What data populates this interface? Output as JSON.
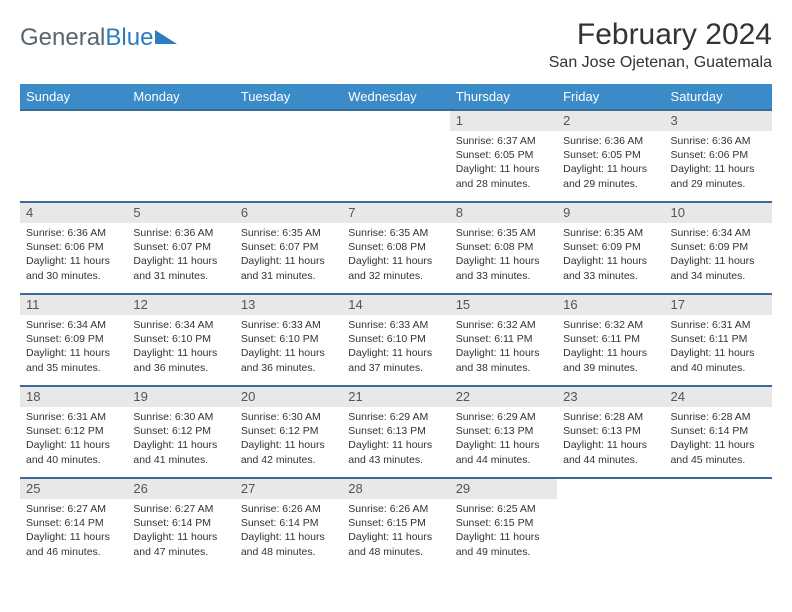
{
  "brand": {
    "part1": "General",
    "part2": "Blue"
  },
  "title": "February 2024",
  "location": "San Jose Ojetenan, Guatemala",
  "colors": {
    "header_bg": "#3b8bc8",
    "header_text": "#ffffff",
    "row_divider": "#3b6a95",
    "daynum_bg": "#e8e8e8",
    "text": "#333333",
    "logo_gray": "#5a6570",
    "logo_blue": "#2e7cc0",
    "background": "#ffffff"
  },
  "weekdays": [
    "Sunday",
    "Monday",
    "Tuesday",
    "Wednesday",
    "Thursday",
    "Friday",
    "Saturday"
  ],
  "weeks": [
    [
      {
        "empty": true
      },
      {
        "empty": true
      },
      {
        "empty": true
      },
      {
        "empty": true
      },
      {
        "day": "1",
        "sunrise": "Sunrise: 6:37 AM",
        "sunset": "Sunset: 6:05 PM",
        "daylight": "Daylight: 11 hours and 28 minutes."
      },
      {
        "day": "2",
        "sunrise": "Sunrise: 6:36 AM",
        "sunset": "Sunset: 6:05 PM",
        "daylight": "Daylight: 11 hours and 29 minutes."
      },
      {
        "day": "3",
        "sunrise": "Sunrise: 6:36 AM",
        "sunset": "Sunset: 6:06 PM",
        "daylight": "Daylight: 11 hours and 29 minutes."
      }
    ],
    [
      {
        "day": "4",
        "sunrise": "Sunrise: 6:36 AM",
        "sunset": "Sunset: 6:06 PM",
        "daylight": "Daylight: 11 hours and 30 minutes."
      },
      {
        "day": "5",
        "sunrise": "Sunrise: 6:36 AM",
        "sunset": "Sunset: 6:07 PM",
        "daylight": "Daylight: 11 hours and 31 minutes."
      },
      {
        "day": "6",
        "sunrise": "Sunrise: 6:35 AM",
        "sunset": "Sunset: 6:07 PM",
        "daylight": "Daylight: 11 hours and 31 minutes."
      },
      {
        "day": "7",
        "sunrise": "Sunrise: 6:35 AM",
        "sunset": "Sunset: 6:08 PM",
        "daylight": "Daylight: 11 hours and 32 minutes."
      },
      {
        "day": "8",
        "sunrise": "Sunrise: 6:35 AM",
        "sunset": "Sunset: 6:08 PM",
        "daylight": "Daylight: 11 hours and 33 minutes."
      },
      {
        "day": "9",
        "sunrise": "Sunrise: 6:35 AM",
        "sunset": "Sunset: 6:09 PM",
        "daylight": "Daylight: 11 hours and 33 minutes."
      },
      {
        "day": "10",
        "sunrise": "Sunrise: 6:34 AM",
        "sunset": "Sunset: 6:09 PM",
        "daylight": "Daylight: 11 hours and 34 minutes."
      }
    ],
    [
      {
        "day": "11",
        "sunrise": "Sunrise: 6:34 AM",
        "sunset": "Sunset: 6:09 PM",
        "daylight": "Daylight: 11 hours and 35 minutes."
      },
      {
        "day": "12",
        "sunrise": "Sunrise: 6:34 AM",
        "sunset": "Sunset: 6:10 PM",
        "daylight": "Daylight: 11 hours and 36 minutes."
      },
      {
        "day": "13",
        "sunrise": "Sunrise: 6:33 AM",
        "sunset": "Sunset: 6:10 PM",
        "daylight": "Daylight: 11 hours and 36 minutes."
      },
      {
        "day": "14",
        "sunrise": "Sunrise: 6:33 AM",
        "sunset": "Sunset: 6:10 PM",
        "daylight": "Daylight: 11 hours and 37 minutes."
      },
      {
        "day": "15",
        "sunrise": "Sunrise: 6:32 AM",
        "sunset": "Sunset: 6:11 PM",
        "daylight": "Daylight: 11 hours and 38 minutes."
      },
      {
        "day": "16",
        "sunrise": "Sunrise: 6:32 AM",
        "sunset": "Sunset: 6:11 PM",
        "daylight": "Daylight: 11 hours and 39 minutes."
      },
      {
        "day": "17",
        "sunrise": "Sunrise: 6:31 AM",
        "sunset": "Sunset: 6:11 PM",
        "daylight": "Daylight: 11 hours and 40 minutes."
      }
    ],
    [
      {
        "day": "18",
        "sunrise": "Sunrise: 6:31 AM",
        "sunset": "Sunset: 6:12 PM",
        "daylight": "Daylight: 11 hours and 40 minutes."
      },
      {
        "day": "19",
        "sunrise": "Sunrise: 6:30 AM",
        "sunset": "Sunset: 6:12 PM",
        "daylight": "Daylight: 11 hours and 41 minutes."
      },
      {
        "day": "20",
        "sunrise": "Sunrise: 6:30 AM",
        "sunset": "Sunset: 6:12 PM",
        "daylight": "Daylight: 11 hours and 42 minutes."
      },
      {
        "day": "21",
        "sunrise": "Sunrise: 6:29 AM",
        "sunset": "Sunset: 6:13 PM",
        "daylight": "Daylight: 11 hours and 43 minutes."
      },
      {
        "day": "22",
        "sunrise": "Sunrise: 6:29 AM",
        "sunset": "Sunset: 6:13 PM",
        "daylight": "Daylight: 11 hours and 44 minutes."
      },
      {
        "day": "23",
        "sunrise": "Sunrise: 6:28 AM",
        "sunset": "Sunset: 6:13 PM",
        "daylight": "Daylight: 11 hours and 44 minutes."
      },
      {
        "day": "24",
        "sunrise": "Sunrise: 6:28 AM",
        "sunset": "Sunset: 6:14 PM",
        "daylight": "Daylight: 11 hours and 45 minutes."
      }
    ],
    [
      {
        "day": "25",
        "sunrise": "Sunrise: 6:27 AM",
        "sunset": "Sunset: 6:14 PM",
        "daylight": "Daylight: 11 hours and 46 minutes."
      },
      {
        "day": "26",
        "sunrise": "Sunrise: 6:27 AM",
        "sunset": "Sunset: 6:14 PM",
        "daylight": "Daylight: 11 hours and 47 minutes."
      },
      {
        "day": "27",
        "sunrise": "Sunrise: 6:26 AM",
        "sunset": "Sunset: 6:14 PM",
        "daylight": "Daylight: 11 hours and 48 minutes."
      },
      {
        "day": "28",
        "sunrise": "Sunrise: 6:26 AM",
        "sunset": "Sunset: 6:15 PM",
        "daylight": "Daylight: 11 hours and 48 minutes."
      },
      {
        "day": "29",
        "sunrise": "Sunrise: 6:25 AM",
        "sunset": "Sunset: 6:15 PM",
        "daylight": "Daylight: 11 hours and 49 minutes."
      },
      {
        "empty": true
      },
      {
        "empty": true
      }
    ]
  ]
}
